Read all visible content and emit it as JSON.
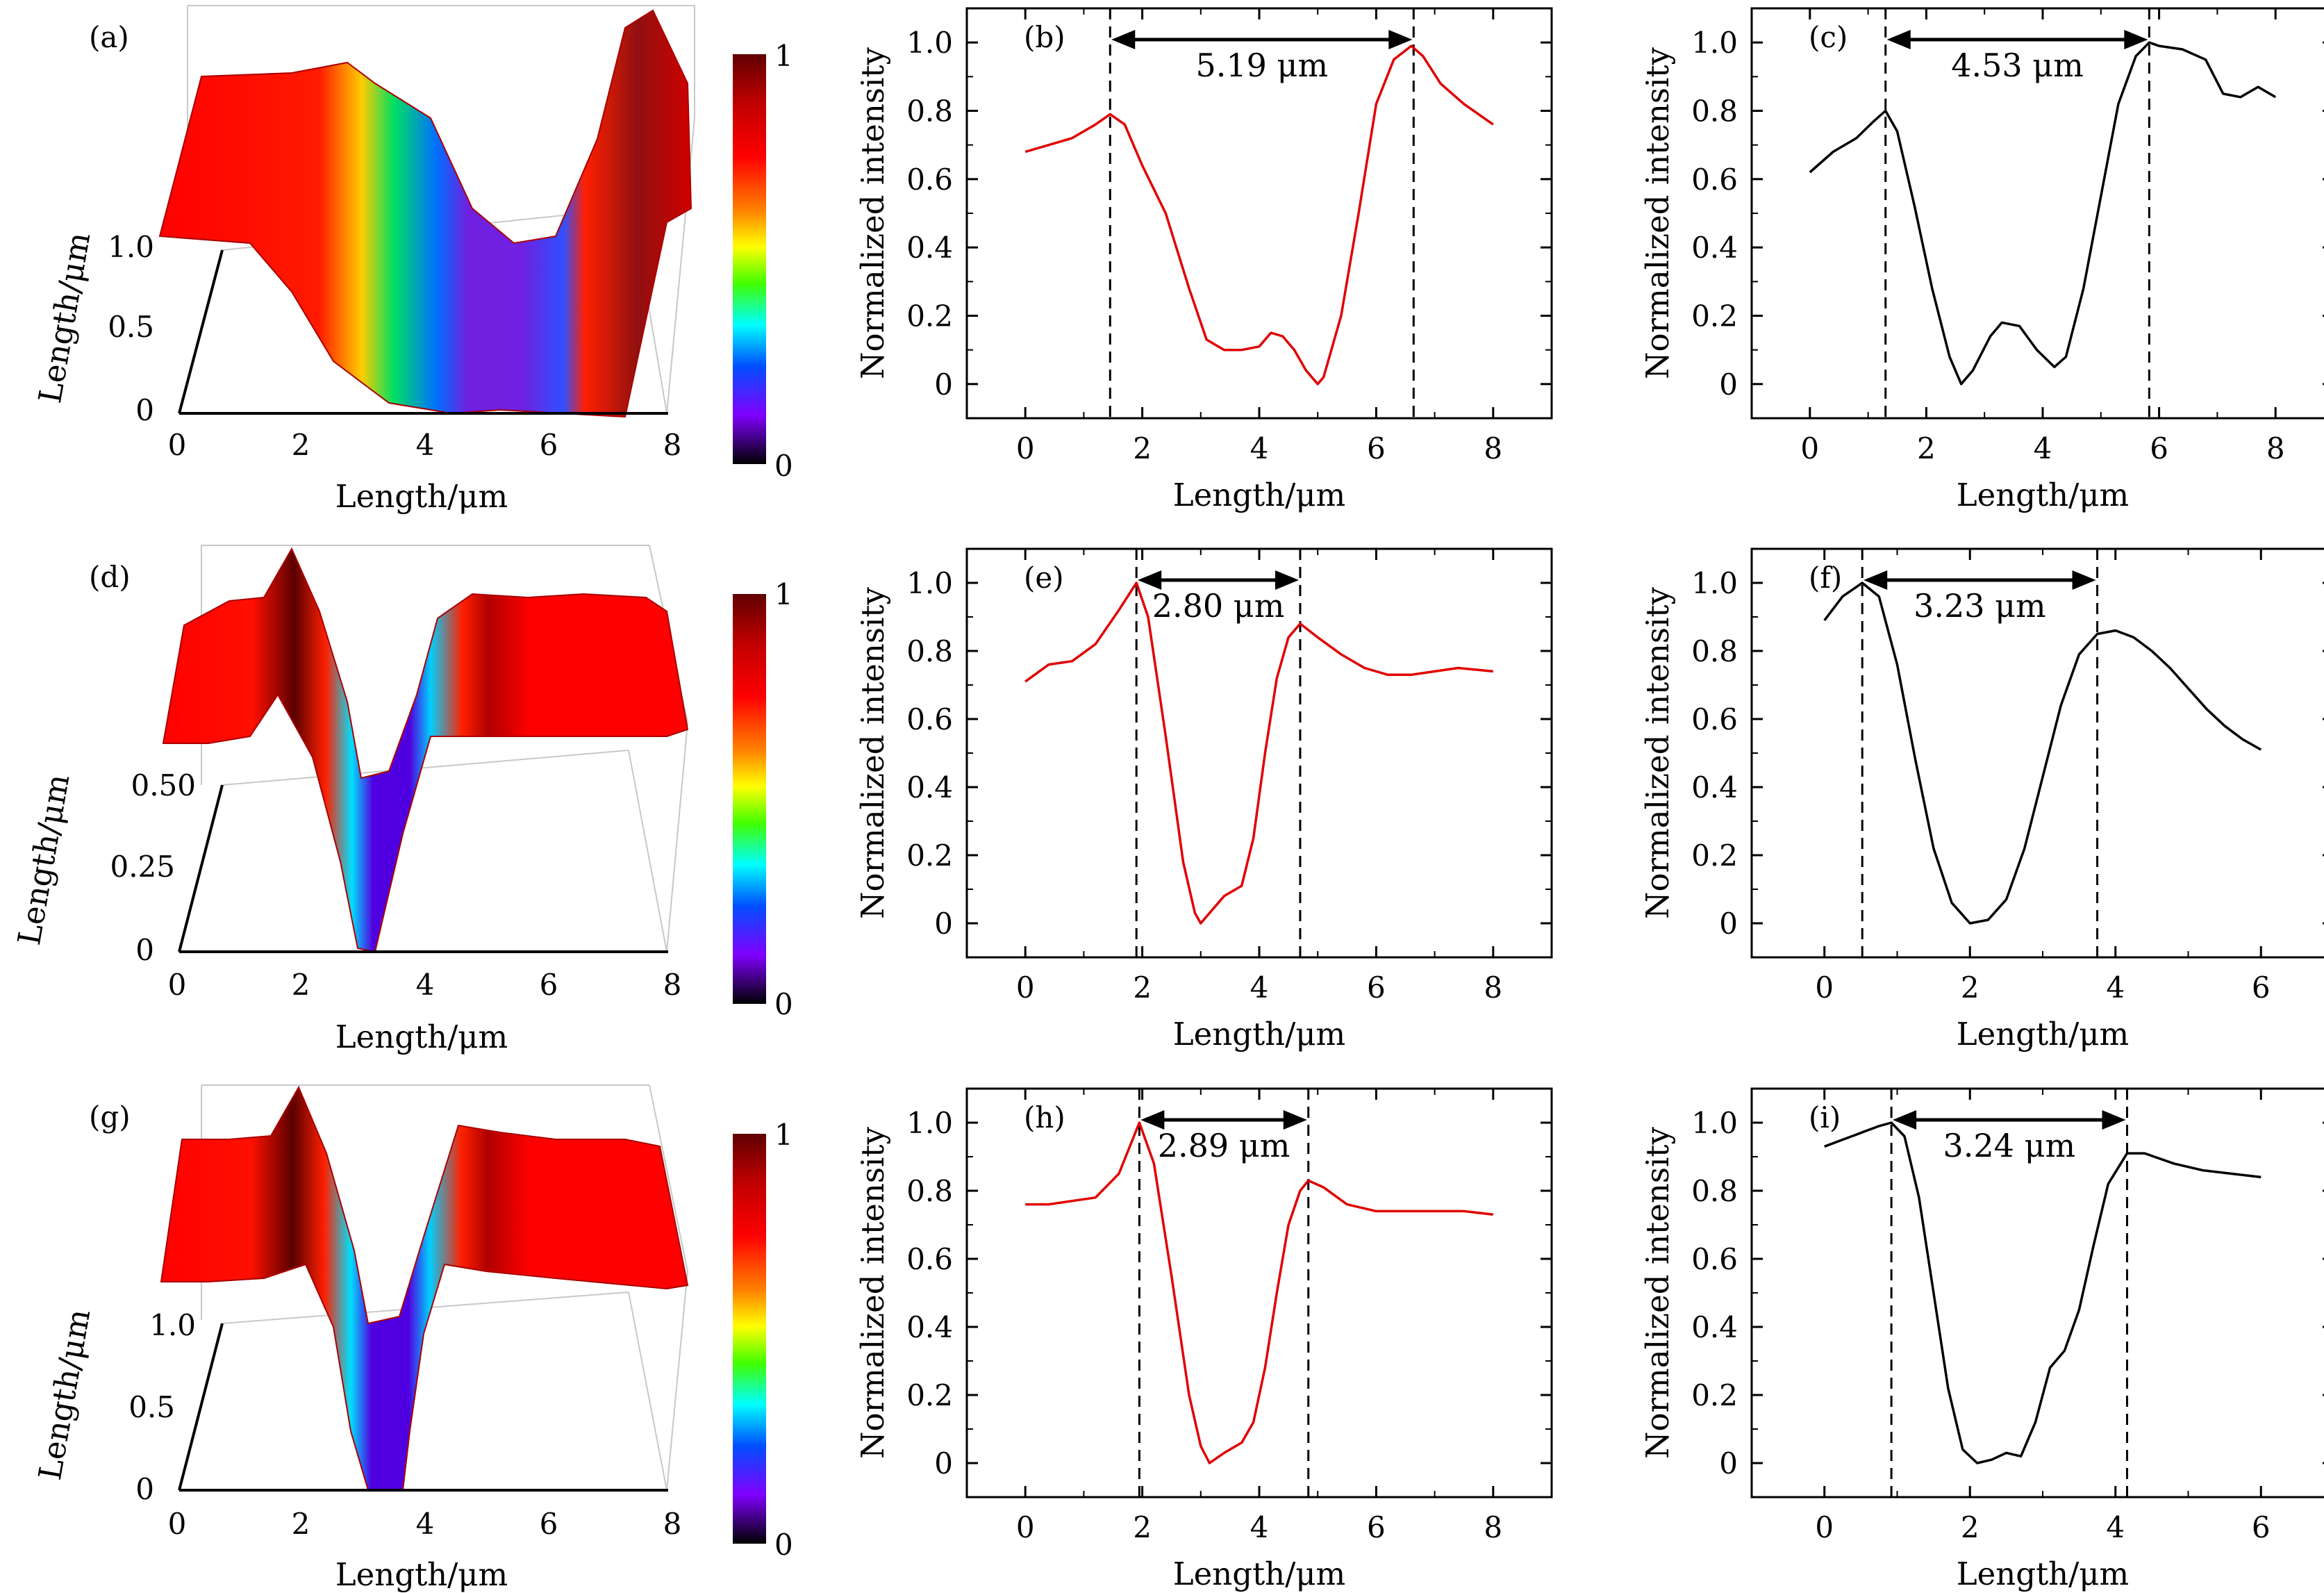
{
  "colors": {
    "red_series": "#e00000",
    "black_series": "#000000",
    "axis": "#000000"
  },
  "surface_panels": [
    {
      "label": "(a)",
      "xlabel": "Length/μm",
      "ylabel": "Length/μm",
      "xticks": [
        "0",
        "2",
        "4",
        "6",
        "8"
      ],
      "yticks": [
        "0",
        "0.5",
        "1.0"
      ],
      "colorbar": {
        "max": "1",
        "min": "0"
      }
    },
    {
      "label": "(d)",
      "xlabel": "Length/μm",
      "ylabel": "Length/μm",
      "xticks": [
        "0",
        "2",
        "4",
        "6",
        "8"
      ],
      "yticks": [
        "0",
        "0.25",
        "0.50"
      ],
      "colorbar": {
        "max": "1",
        "min": "0"
      }
    },
    {
      "label": "(g)",
      "xlabel": "Length/μm",
      "ylabel": "Length/μm",
      "xticks": [
        "0",
        "2",
        "4",
        "6",
        "8"
      ],
      "yticks": [
        "0",
        "0.5",
        "1.0"
      ],
      "colorbar": {
        "max": "1",
        "min": "0"
      }
    }
  ],
  "chart_data": [
    {
      "label": "(b)",
      "type": "line",
      "color": "red",
      "xlabel": "Length/μm",
      "ylabel": "Normalized intensity",
      "xlim": [
        -1,
        9
      ],
      "ylim": [
        -0.1,
        1.1
      ],
      "xticks": [
        0,
        2,
        4,
        6,
        8
      ],
      "yticks": [
        0,
        0.2,
        0.4,
        0.6,
        0.8,
        1.0
      ],
      "markers": [
        1.45,
        6.64
      ],
      "annotation": "5.19 μm",
      "x": [
        0,
        0.4,
        0.8,
        1.2,
        1.45,
        1.7,
        2.0,
        2.4,
        2.8,
        3.1,
        3.4,
        3.7,
        4.0,
        4.2,
        4.4,
        4.6,
        4.8,
        5.0,
        5.1,
        5.4,
        5.7,
        6.0,
        6.3,
        6.6,
        6.8,
        7.1,
        7.5,
        8.0
      ],
      "y": [
        0.68,
        0.7,
        0.72,
        0.76,
        0.79,
        0.76,
        0.64,
        0.5,
        0.28,
        0.13,
        0.1,
        0.1,
        0.11,
        0.15,
        0.14,
        0.1,
        0.04,
        0.0,
        0.02,
        0.2,
        0.5,
        0.82,
        0.95,
        0.99,
        0.96,
        0.88,
        0.82,
        0.76
      ]
    },
    {
      "label": "(c)",
      "type": "line",
      "color": "black",
      "xlabel": "Length/μm",
      "ylabel": "Normalized intensity",
      "xlim": [
        -1,
        9
      ],
      "ylim": [
        -0.1,
        1.1
      ],
      "xticks": [
        0,
        2,
        4,
        6,
        8
      ],
      "yticks": [
        0,
        0.2,
        0.4,
        0.6,
        0.8,
        1.0
      ],
      "markers": [
        1.3,
        5.83
      ],
      "annotation": "4.53 μm",
      "x": [
        0,
        0.4,
        0.8,
        1.1,
        1.3,
        1.5,
        1.8,
        2.1,
        2.4,
        2.6,
        2.8,
        3.1,
        3.3,
        3.6,
        3.9,
        4.2,
        4.4,
        4.7,
        5.0,
        5.3,
        5.6,
        5.83,
        6.0,
        6.4,
        6.8,
        7.1,
        7.4,
        7.7,
        8.0
      ],
      "y": [
        0.62,
        0.68,
        0.72,
        0.77,
        0.8,
        0.74,
        0.52,
        0.28,
        0.08,
        0.0,
        0.04,
        0.14,
        0.18,
        0.17,
        0.1,
        0.05,
        0.08,
        0.28,
        0.55,
        0.82,
        0.96,
        1.0,
        0.99,
        0.98,
        0.95,
        0.85,
        0.84,
        0.87,
        0.84
      ]
    },
    {
      "label": "(e)",
      "type": "line",
      "color": "red",
      "xlabel": "Length/μm",
      "ylabel": "Normalized intensity",
      "xlim": [
        -1,
        9
      ],
      "ylim": [
        -0.1,
        1.1
      ],
      "xticks": [
        0,
        2,
        4,
        6,
        8
      ],
      "yticks": [
        0,
        0.2,
        0.4,
        0.6,
        0.8,
        1.0
      ],
      "markers": [
        1.9,
        4.7
      ],
      "annotation": "2.80 μm",
      "x": [
        0,
        0.4,
        0.8,
        1.2,
        1.6,
        1.9,
        2.1,
        2.4,
        2.7,
        2.9,
        3.0,
        3.2,
        3.4,
        3.7,
        3.9,
        4.1,
        4.3,
        4.5,
        4.7,
        5.0,
        5.4,
        5.8,
        6.2,
        6.6,
        7.0,
        7.4,
        8.0
      ],
      "y": [
        0.71,
        0.76,
        0.77,
        0.82,
        0.92,
        1.0,
        0.9,
        0.55,
        0.18,
        0.03,
        0.0,
        0.04,
        0.08,
        0.11,
        0.25,
        0.5,
        0.72,
        0.84,
        0.88,
        0.84,
        0.79,
        0.75,
        0.73,
        0.73,
        0.74,
        0.75,
        0.74
      ]
    },
    {
      "label": "(f)",
      "type": "line",
      "color": "black",
      "xlabel": "Length/μm",
      "ylabel": "Normalized intensity",
      "xlim": [
        -1,
        7
      ],
      "ylim": [
        -0.1,
        1.1
      ],
      "xticks": [
        0,
        2,
        4,
        6
      ],
      "yticks": [
        0,
        0.2,
        0.4,
        0.6,
        0.8,
        1.0
      ],
      "markers": [
        0.52,
        3.75
      ],
      "annotation": "3.23 μm",
      "x": [
        0,
        0.25,
        0.52,
        0.75,
        1.0,
        1.25,
        1.5,
        1.75,
        2.0,
        2.25,
        2.5,
        2.75,
        3.0,
        3.25,
        3.5,
        3.75,
        4.0,
        4.25,
        4.5,
        4.75,
        5.0,
        5.25,
        5.5,
        5.75,
        6.0
      ],
      "y": [
        0.89,
        0.96,
        1.0,
        0.96,
        0.76,
        0.48,
        0.22,
        0.06,
        0.0,
        0.01,
        0.07,
        0.22,
        0.43,
        0.64,
        0.79,
        0.85,
        0.86,
        0.84,
        0.8,
        0.75,
        0.69,
        0.63,
        0.58,
        0.54,
        0.51
      ]
    },
    {
      "label": "(h)",
      "type": "line",
      "color": "red",
      "xlabel": "Length/μm",
      "ylabel": "Normalized intensity",
      "xlim": [
        -1,
        9
      ],
      "ylim": [
        -0.1,
        1.1
      ],
      "xticks": [
        0,
        2,
        4,
        6,
        8
      ],
      "yticks": [
        0,
        0.2,
        0.4,
        0.6,
        0.8,
        1.0
      ],
      "markers": [
        1.95,
        4.84
      ],
      "annotation": "2.89 μm",
      "x": [
        0,
        0.4,
        0.8,
        1.2,
        1.6,
        1.95,
        2.2,
        2.5,
        2.8,
        3.0,
        3.15,
        3.4,
        3.7,
        3.9,
        4.1,
        4.3,
        4.5,
        4.7,
        4.84,
        5.1,
        5.5,
        6.0,
        6.5,
        7.0,
        7.5,
        8.0
      ],
      "y": [
        0.76,
        0.76,
        0.77,
        0.78,
        0.85,
        1.0,
        0.88,
        0.55,
        0.2,
        0.05,
        0.0,
        0.03,
        0.06,
        0.12,
        0.28,
        0.5,
        0.7,
        0.8,
        0.83,
        0.81,
        0.76,
        0.74,
        0.74,
        0.74,
        0.74,
        0.73
      ]
    },
    {
      "label": "(i)",
      "type": "line",
      "color": "black",
      "xlabel": "Length/μm",
      "ylabel": "Normalized intensity",
      "xlim": [
        -1,
        7
      ],
      "ylim": [
        -0.1,
        1.1
      ],
      "xticks": [
        0,
        2,
        4,
        6
      ],
      "yticks": [
        0,
        0.2,
        0.4,
        0.6,
        0.8,
        1.0
      ],
      "markers": [
        0.92,
        4.16
      ],
      "annotation": "3.24 μm",
      "x": [
        0,
        0.25,
        0.5,
        0.75,
        0.92,
        1.1,
        1.3,
        1.5,
        1.7,
        1.9,
        2.1,
        2.3,
        2.5,
        2.7,
        2.9,
        3.1,
        3.3,
        3.5,
        3.7,
        3.9,
        4.16,
        4.4,
        4.8,
        5.2,
        5.6,
        6.0
      ],
      "y": [
        0.93,
        0.95,
        0.97,
        0.99,
        1.0,
        0.96,
        0.78,
        0.5,
        0.22,
        0.04,
        0.0,
        0.01,
        0.03,
        0.02,
        0.12,
        0.28,
        0.33,
        0.45,
        0.64,
        0.82,
        0.91,
        0.91,
        0.88,
        0.86,
        0.85,
        0.84
      ]
    }
  ]
}
